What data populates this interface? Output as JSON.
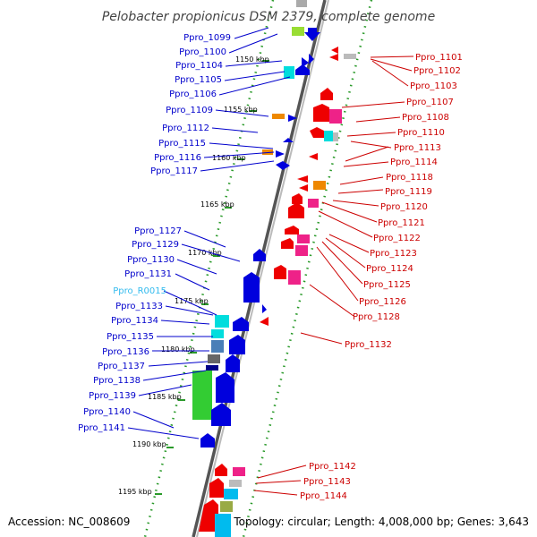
{
  "title": "Pelobacter propionicus DSM 2379, complete genome",
  "footer": {
    "accession": "Accession: NC_008609",
    "summary": "Topology: circular; Length: 4,008,000 bp; Genes: 3,643"
  },
  "colors": {
    "forward_label": "#0000cc",
    "reverse_label": "#cc0000",
    "rna_label": "#33bbee",
    "axis": "#777777",
    "tick": "#228822"
  },
  "scale_ticks": [
    "1150 kbp",
    "1155 kbp",
    "1160 kbp",
    "1165 kbp",
    "1170 kbp",
    "1175 kbp",
    "1180 kbp",
    "1185 kbp",
    "1190 kbp",
    "1195 kbp"
  ],
  "left_labels": [
    "Ppro_1099",
    "Ppro_1100",
    "Ppro_1104",
    "Ppro_1105",
    "Ppro_1106",
    "Ppro_1109",
    "Ppro_1112",
    "Ppro_1115",
    "Ppro_1116",
    "Ppro_1117",
    "Ppro_1127",
    "Ppro_1129",
    "Ppro_1130",
    "Ppro_1131",
    "Ppro_R0015",
    "Ppro_1133",
    "Ppro_1134",
    "Ppro_1135",
    "Ppro_1136",
    "Ppro_1137",
    "Ppro_1138",
    "Ppro_1139",
    "Ppro_1140",
    "Ppro_1141"
  ],
  "right_labels": [
    "Ppro_1101",
    "Ppro_1102",
    "Ppro_1103",
    "Ppro_1107",
    "Ppro_1108",
    "Ppro_1110",
    "Ppro_1113",
    "Ppro_1114",
    "Ppro_1118",
    "Ppro_1119",
    "Ppro_1120",
    "Ppro_1121",
    "Ppro_1122",
    "Ppro_1123",
    "Ppro_1124",
    "Ppro_1125",
    "Ppro_1126",
    "Ppro_1128",
    "Ppro_1132",
    "Ppro_1142",
    "Ppro_1143",
    "Ppro_1144"
  ]
}
